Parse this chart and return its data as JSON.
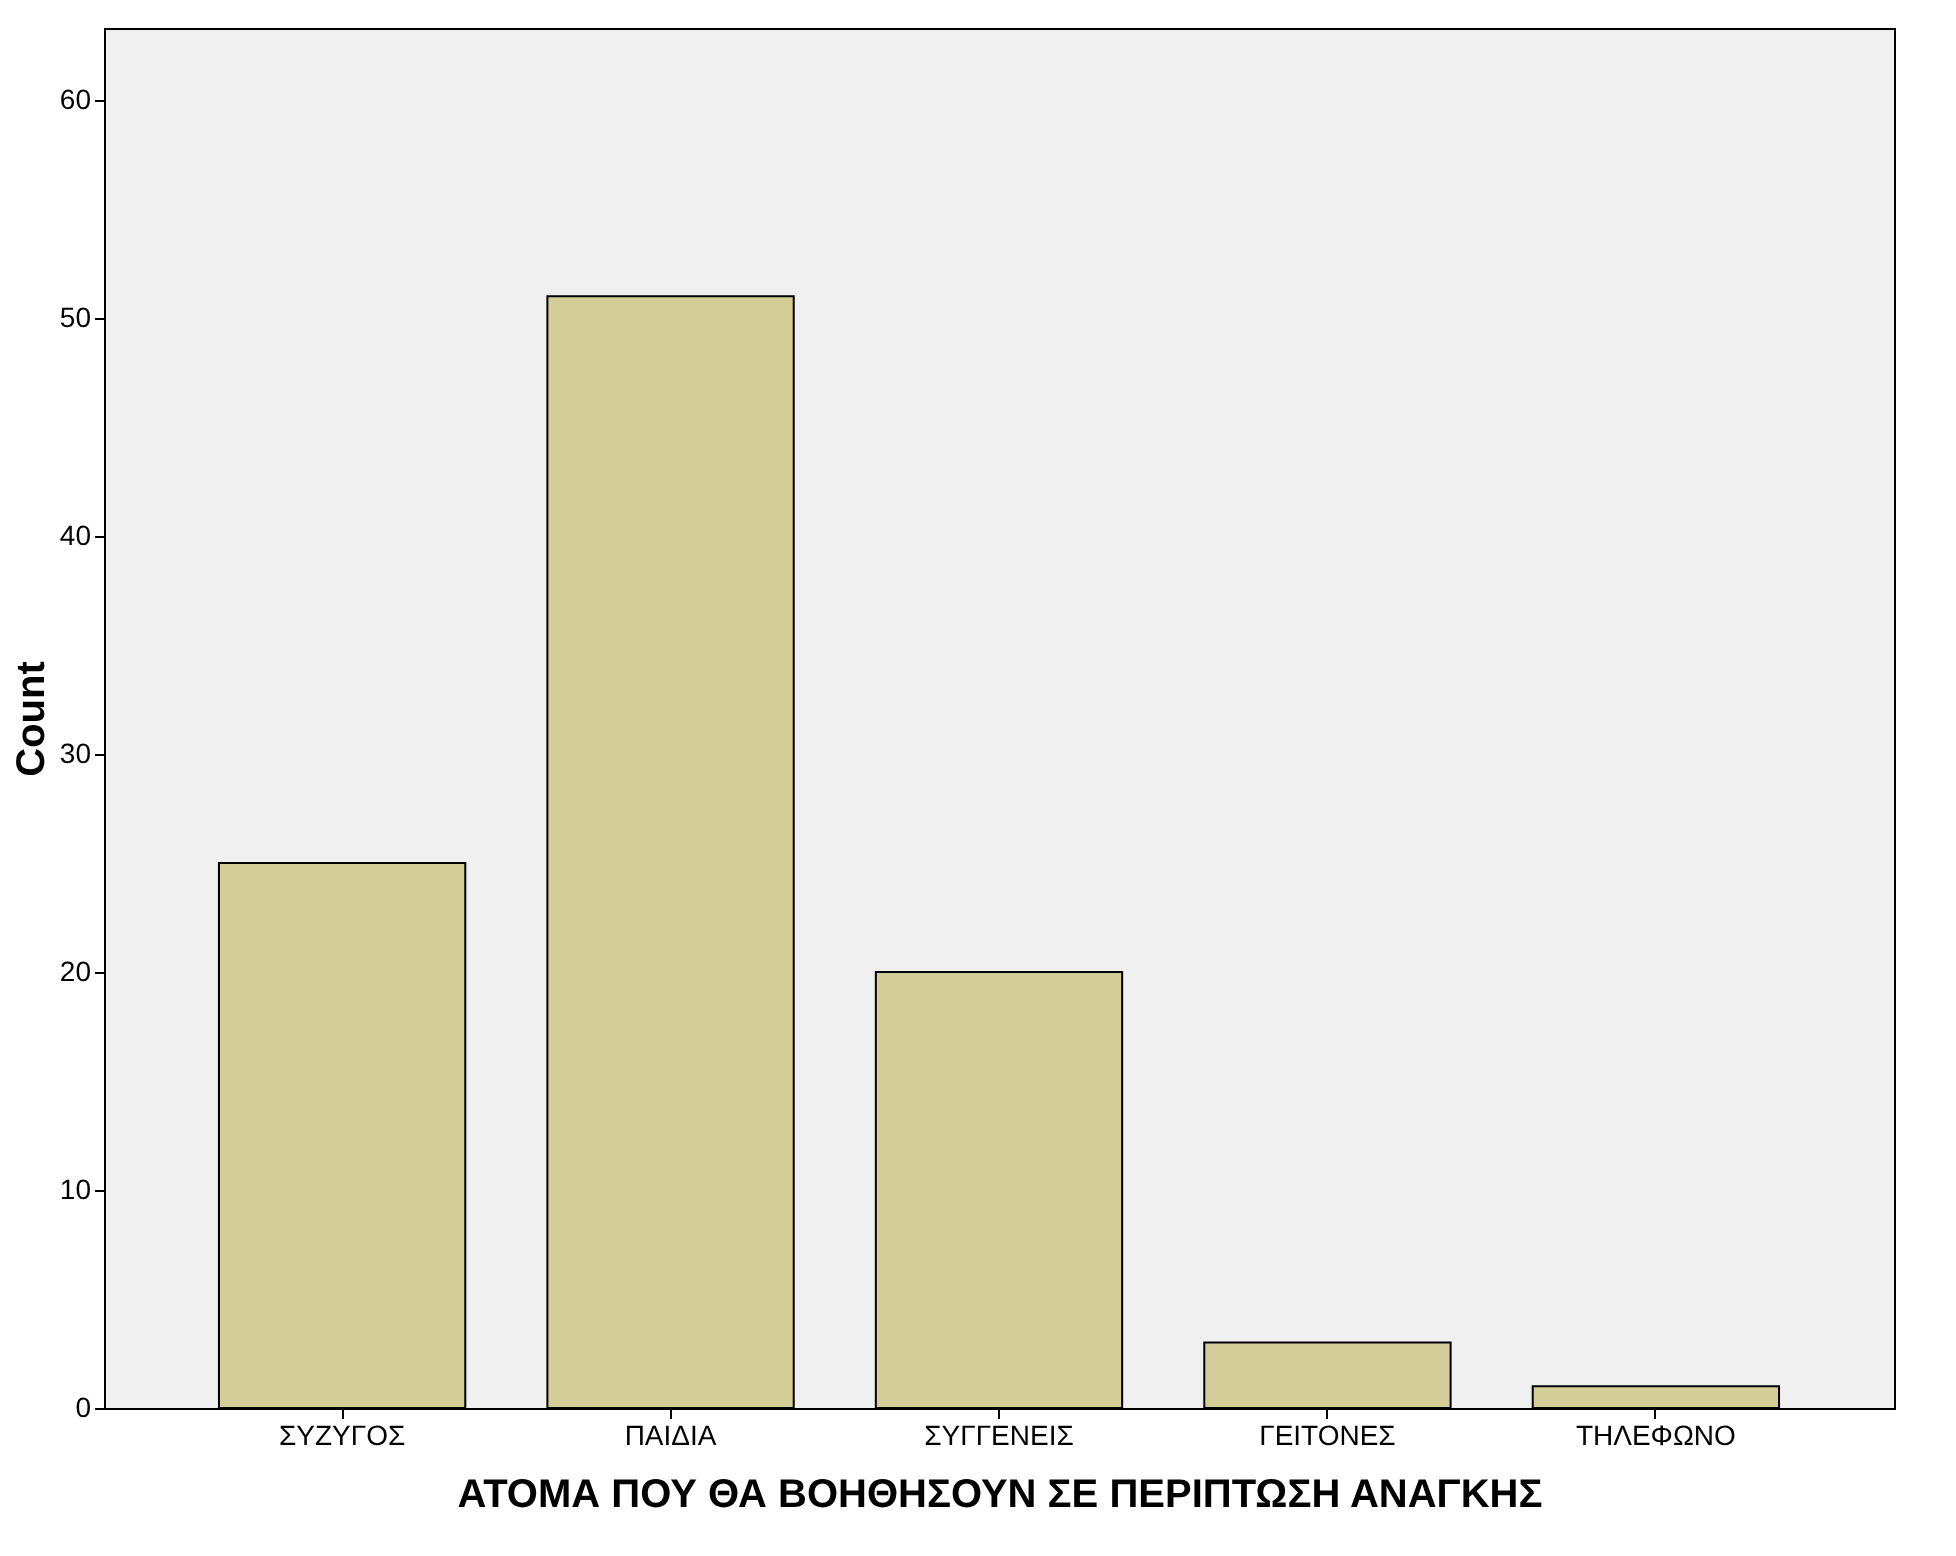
{
  "chart_data": {
    "type": "bar",
    "xlabel": "ΑΤΟΜΑ ΠΟΥ ΘΑ ΒΟΗΘΗΣΟΥΝ ΣΕ ΠΕΡΙΠΤΩΣΗ ΑΝΑΓΚΗΣ",
    "ylabel": "Count",
    "categories": [
      "ΣΥΖΥΓΟΣ",
      "ΠΑΙΔΙΑ",
      "ΣΥΓΓΕΝΕΙΣ",
      "ΓΕΙΤΟΝΕΣ",
      "ΤΗΛΕΦΩΝΟ"
    ],
    "values": [
      25,
      51,
      20,
      3,
      1
    ],
    "color": "#d3ce97",
    "ylim": [
      0,
      63.3
    ],
    "yticks": [
      0,
      10,
      20,
      30,
      40,
      50,
      60
    ],
    "grid": false
  }
}
